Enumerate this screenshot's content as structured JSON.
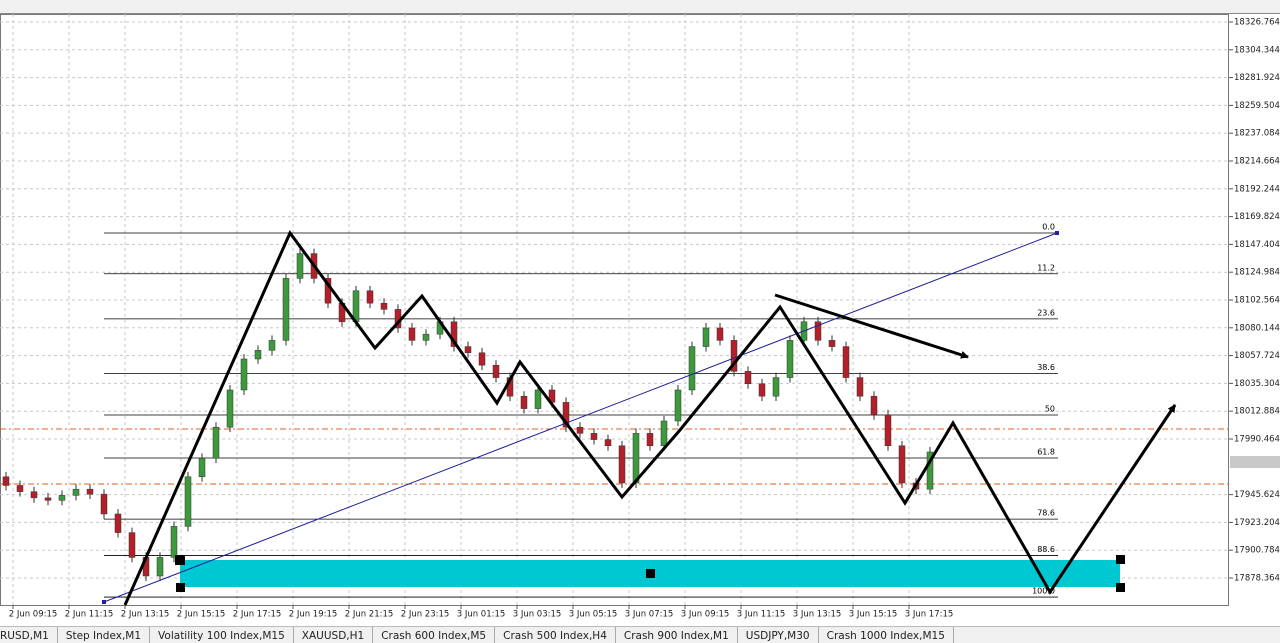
{
  "chart_data": {
    "type": "candlestick",
    "ylim": [
      17856.6,
      18333.2
    ],
    "yticks": [
      {
        "value": 18326.764,
        "label": "18326.7640"
      },
      {
        "value": 18304.344,
        "label": "18304.3440"
      },
      {
        "value": 18281.924,
        "label": "18281.9240"
      },
      {
        "value": 18259.504,
        "label": "18259.5040"
      },
      {
        "value": 18237.084,
        "label": "18237.0840"
      },
      {
        "value": 18214.664,
        "label": "18214.6640"
      },
      {
        "value": 18192.244,
        "label": "18192.2440"
      },
      {
        "value": 18169.824,
        "label": "18169.8240"
      },
      {
        "value": 18147.404,
        "label": "18147.4040"
      },
      {
        "value": 18124.984,
        "label": "18124.9840"
      },
      {
        "value": 18102.564,
        "label": "18102.5640"
      },
      {
        "value": 18080.144,
        "label": "18080.1440"
      },
      {
        "value": 18057.724,
        "label": "18057.7240"
      },
      {
        "value": 18035.304,
        "label": "18035.3040"
      },
      {
        "value": 18012.884,
        "label": "18012.8840"
      },
      {
        "value": 17990.464,
        "label": "17990.4640"
      },
      {
        "value": 17945.624,
        "label": "17945.6240"
      },
      {
        "value": 17923.204,
        "label": "17923.2040"
      },
      {
        "value": 17900.784,
        "label": "17900.7840"
      },
      {
        "value": 17878.364,
        "label": "17878.3640"
      }
    ],
    "x": [
      "2 Jun 09:15",
      "2 Jun 11:15",
      "2 Jun 13:15",
      "2 Jun 15:15",
      "2 Jun 17:15",
      "2 Jun 19:15",
      "2 Jun 21:15",
      "2 Jun 23:15",
      "3 Jun 01:15",
      "3 Jun 03:15",
      "3 Jun 05:15",
      "3 Jun 07:15",
      "3 Jun 09:15",
      "3 Jun 11:15",
      "3 Jun 13:15",
      "3 Jun 15:15",
      "3 Jun 17:15"
    ],
    "up_color": "#3c9a3c",
    "down_color": "#b3202a",
    "candles": [
      [
        17960,
        17964,
        17949,
        17953
      ],
      [
        17953,
        17957,
        17944,
        17948
      ],
      [
        17948,
        17952,
        17939,
        17943
      ],
      [
        17943,
        17947,
        17937,
        17941
      ],
      [
        17941,
        17949,
        17937,
        17945
      ],
      [
        17945,
        17954,
        17941,
        17950
      ],
      [
        17950,
        17954,
        17942,
        17946
      ],
      [
        17946,
        17950,
        17926,
        17930
      ],
      [
        17930,
        17934,
        17911,
        17915
      ],
      [
        17915,
        17919,
        17891,
        17895
      ],
      [
        17895,
        17899,
        17876,
        17880
      ],
      [
        17880,
        17899,
        17876,
        17895
      ],
      [
        17895,
        17924,
        17891,
        17920
      ],
      [
        17920,
        17964,
        17916,
        17960
      ],
      [
        17960,
        17979,
        17956,
        17975
      ],
      [
        17975,
        18004,
        17971,
        18000
      ],
      [
        18000,
        18034,
        17996,
        18030
      ],
      [
        18030,
        18059,
        18026,
        18055
      ],
      [
        18055,
        18066,
        18051,
        18062
      ],
      [
        18062,
        18074,
        18058,
        18070
      ],
      [
        18070,
        18124,
        18066,
        18120
      ],
      [
        18120,
        18144,
        18116,
        18140
      ],
      [
        18140,
        18144,
        18116,
        18120
      ],
      [
        18120,
        18124,
        18096,
        18100
      ],
      [
        18100,
        18104,
        18081,
        18085
      ],
      [
        18085,
        18114,
        18081,
        18110
      ],
      [
        18110,
        18114,
        18096,
        18100
      ],
      [
        18100,
        18104,
        18091,
        18095
      ],
      [
        18095,
        18099,
        18076,
        18080
      ],
      [
        18080,
        18084,
        18066,
        18070
      ],
      [
        18070,
        18079,
        18066,
        18075
      ],
      [
        18075,
        18089,
        18071,
        18085
      ],
      [
        18085,
        18089,
        18061,
        18065
      ],
      [
        18065,
        18069,
        18056,
        18060
      ],
      [
        18060,
        18064,
        18046,
        18050
      ],
      [
        18050,
        18054,
        18036,
        18040
      ],
      [
        18040,
        18044,
        18021,
        18025
      ],
      [
        18025,
        18029,
        18011,
        18015
      ],
      [
        18015,
        18034,
        18011,
        18030
      ],
      [
        18030,
        18034,
        18016,
        18020
      ],
      [
        18020,
        18024,
        17996,
        18000
      ],
      [
        18000,
        18004,
        17991,
        17995
      ],
      [
        17995,
        17999,
        17986,
        17990
      ],
      [
        17990,
        17994,
        17981,
        17985
      ],
      [
        17985,
        17989,
        17951,
        17955
      ],
      [
        17955,
        17999,
        17951,
        17995
      ],
      [
        17995,
        17999,
        17981,
        17985
      ],
      [
        17985,
        18009,
        17981,
        18005
      ],
      [
        18005,
        18034,
        18001,
        18030
      ],
      [
        18030,
        18069,
        18026,
        18065
      ],
      [
        18065,
        18084,
        18061,
        18080
      ],
      [
        18080,
        18084,
        18066,
        18070
      ],
      [
        18070,
        18074,
        18041,
        18045
      ],
      [
        18045,
        18049,
        18031,
        18035
      ],
      [
        18035,
        18039,
        18021,
        18025
      ],
      [
        18025,
        18044,
        18021,
        18040
      ],
      [
        18040,
        18074,
        18036,
        18070
      ],
      [
        18070,
        18089,
        18066,
        18085
      ],
      [
        18085,
        18089,
        18066,
        18070
      ],
      [
        18070,
        18074,
        18061,
        18065
      ],
      [
        18065,
        18069,
        18036,
        18040
      ],
      [
        18040,
        18044,
        18021,
        18025
      ],
      [
        18025,
        18029,
        18006,
        18010
      ],
      [
        18010,
        18014,
        17981,
        17985
      ],
      [
        17985,
        17989,
        17951,
        17955
      ],
      [
        17955,
        17959,
        17946,
        17950
      ],
      [
        17950,
        17984,
        17946,
        17980
      ]
    ],
    "fib": {
      "high": 18156.6,
      "low": 17863.0,
      "levels": [
        {
          "value": 0,
          "label": "0.0"
        },
        {
          "value": 11.2,
          "label": "11.2"
        },
        {
          "value": 23.6,
          "label": "23.6"
        },
        {
          "value": 38.6,
          "label": "38.6"
        },
        {
          "value": 50,
          "label": "50"
        },
        {
          "value": 61.8,
          "label": "61.8"
        },
        {
          "value": 78.6,
          "label": "78.6"
        },
        {
          "value": 88.6,
          "label": "88.6"
        },
        {
          "value": 100,
          "label": "100.0"
        }
      ]
    },
    "price_lines": [
      17998.5,
      17954.2
    ]
  },
  "tabs": [
    "RUSD,M1",
    "Step Index,M1",
    "Volatility 100 Index,M15",
    "XAUUSD,H1",
    "Crash 600 Index,M5",
    "Crash 500 Index,H4",
    "Crash 900 Index,M1",
    "USDJPY,M30",
    "Crash 1000 Index,M15"
  ]
}
